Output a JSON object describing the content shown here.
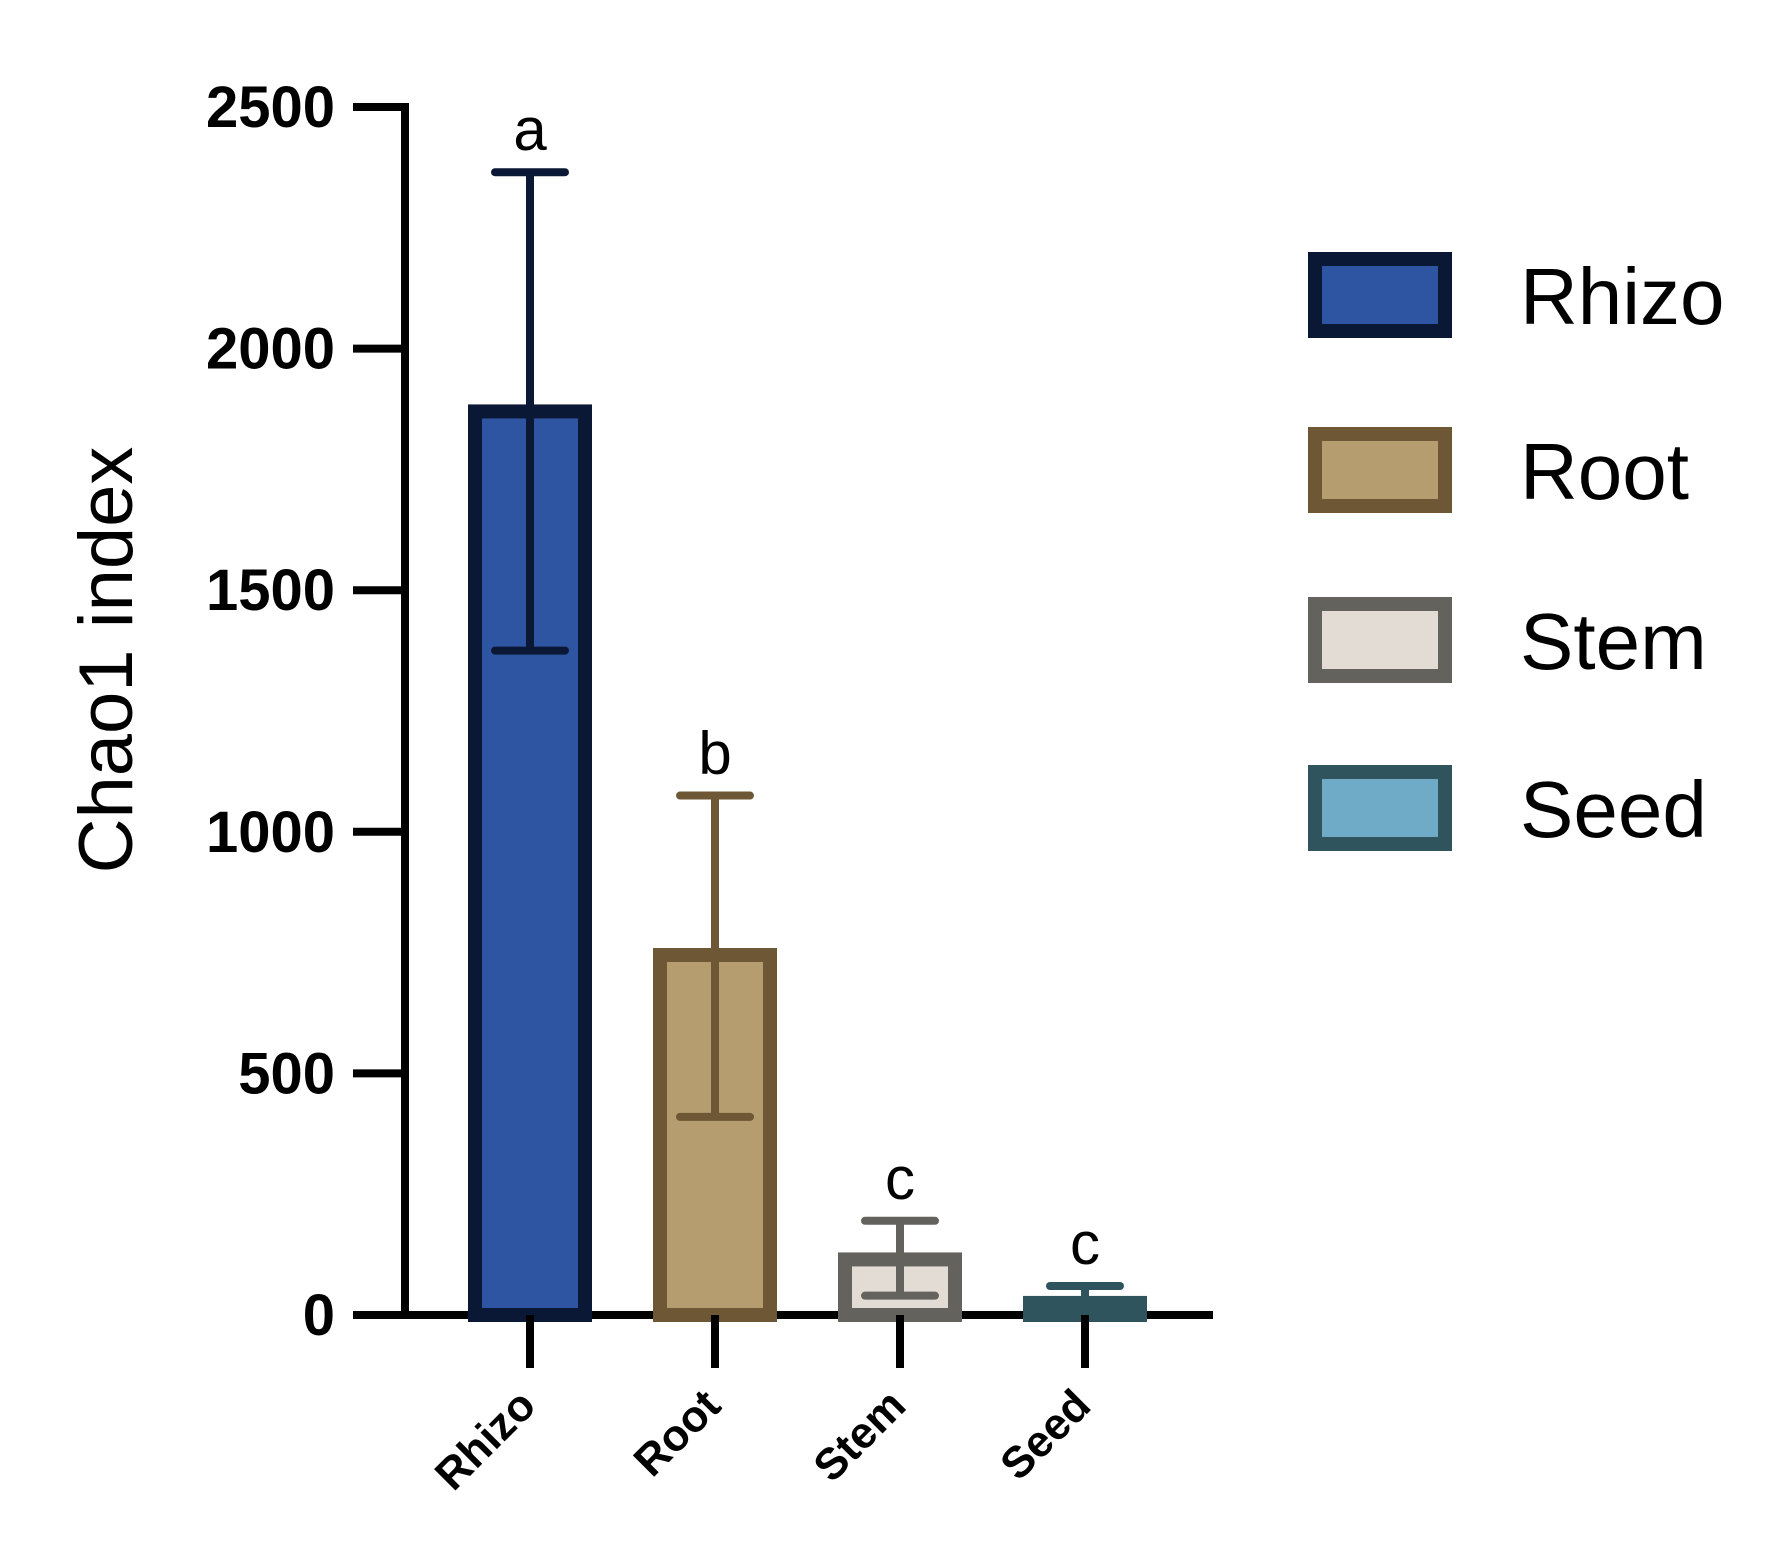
{
  "chart_data": {
    "type": "bar",
    "title": "",
    "xlabel": "",
    "ylabel": "Chao1 index",
    "ylim": [
      0,
      2500
    ],
    "yticks": [
      "0",
      "500",
      "1000",
      "1500",
      "2000",
      "2500"
    ],
    "categories": [
      "Rhizo",
      "Root",
      "Stem",
      "Seed"
    ],
    "values": [
      1870,
      745,
      115,
      25
    ],
    "error": [
      {
        "low": 1375,
        "high": 2365
      },
      {
        "low": 410,
        "high": 1075
      },
      {
        "low": 40,
        "high": 195
      },
      {
        "low": 5,
        "high": 60
      }
    ],
    "significance": [
      "a",
      "b",
      "c",
      "c"
    ],
    "grid": false,
    "legend_position": "right",
    "legend": [
      "Rhizo",
      "Root",
      "Stem",
      "Seed"
    ],
    "colors": {
      "Rhizo": {
        "fill": "#2e55a2",
        "stroke": "#0b1835"
      },
      "Root": {
        "fill": "#b69d6f",
        "stroke": "#6e5735"
      },
      "Stem": {
        "fill": "#e2dcd4",
        "stroke": "#63625d"
      },
      "Seed": {
        "fill": "#6fabc7",
        "stroke": "#30545e"
      }
    }
  }
}
